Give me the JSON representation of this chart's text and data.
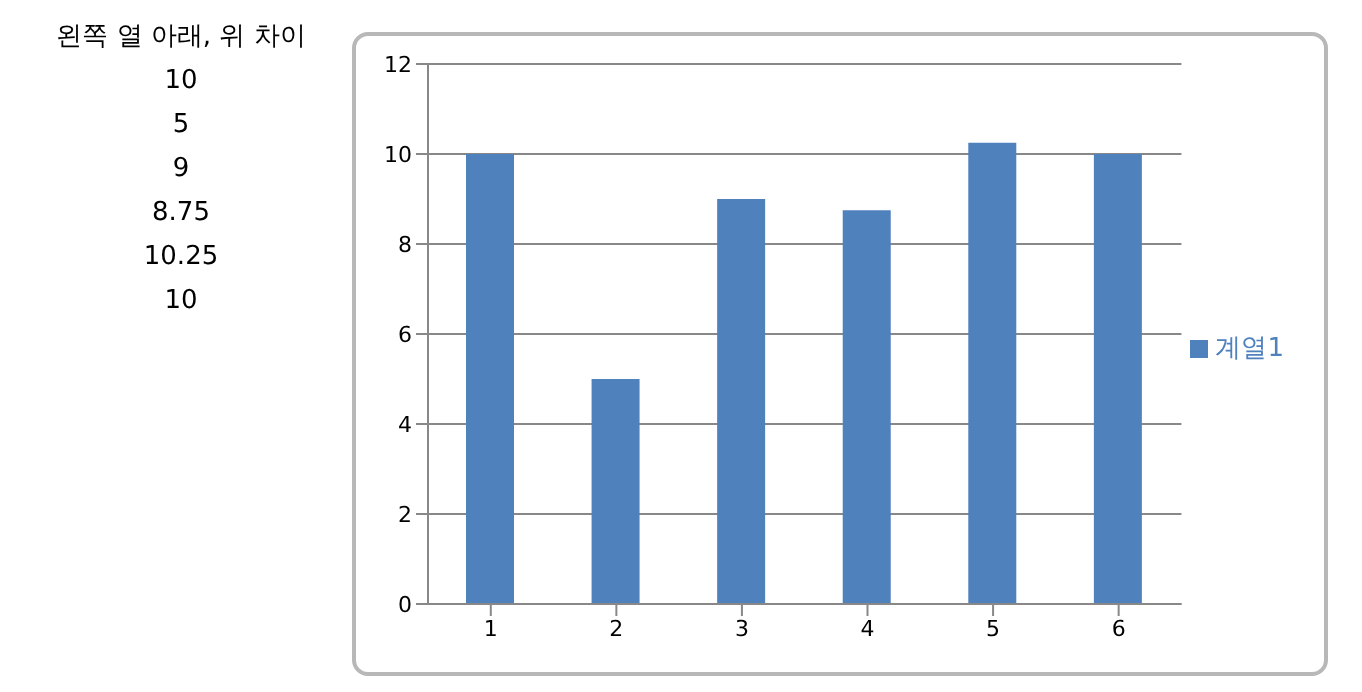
{
  "chart_data": {
    "type": "bar",
    "categories": [
      "1",
      "2",
      "3",
      "4",
      "5",
      "6"
    ],
    "series": [
      {
        "name": "계열1",
        "color": "#4f81bd",
        "values": [
          10,
          5,
          9,
          8.75,
          10.25,
          10
        ]
      }
    ],
    "ylim": [
      0,
      12
    ],
    "yticks": [
      0,
      2,
      4,
      6,
      8,
      10,
      12
    ],
    "grid": "y",
    "legend": "right",
    "annotations": [
      "왼쪽 열 아래, 위 차이",
      "10",
      "5",
      "9",
      "8.75",
      "10.25",
      "10"
    ]
  }
}
